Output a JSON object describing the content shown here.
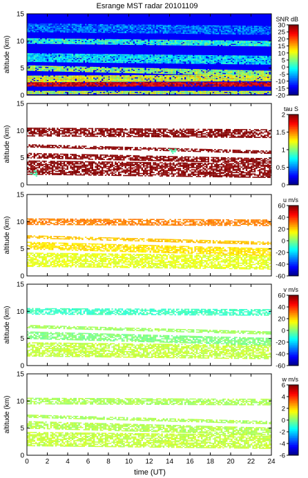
{
  "title": "Esrange MST radar 20101109",
  "xlabel": "time (UT)",
  "chart_data": [
    {
      "type": "heatmap",
      "ylabel": "altitude (km)",
      "colorbar_label": "SNR dB",
      "x_range": [
        0,
        24
      ],
      "x_ticks": [
        0,
        2,
        4,
        6,
        8,
        10,
        12,
        14,
        16,
        18,
        20,
        22,
        24
      ],
      "y_range": [
        0,
        15
      ],
      "y_ticks": [
        0,
        5,
        10,
        15
      ],
      "c_range": [
        -20,
        30
      ],
      "c_ticks": [
        -20,
        -15,
        -10,
        -5,
        0,
        5,
        10,
        15,
        20,
        25,
        30
      ],
      "layers": [
        {
          "alt_start": 0.5,
          "alt_end": 0.5,
          "width": 0.6,
          "value": 8
        },
        {
          "alt_start": 2.0,
          "alt_end": 2.0,
          "width": 0.8,
          "value": 25
        },
        {
          "alt_start": 3.0,
          "alt_end": 3.2,
          "width": 1.2,
          "value": 10
        },
        {
          "alt_start": 5.0,
          "alt_end": 4.0,
          "width": 1.0,
          "value": 6
        },
        {
          "alt_start": 7.0,
          "alt_end": 6.5,
          "width": 1.5,
          "value": -2
        },
        {
          "alt_start": 10.0,
          "alt_end": 9.5,
          "width": 1.0,
          "value": 1
        },
        {
          "alt_start": 12.5,
          "alt_end": 12.0,
          "width": 1.5,
          "value": -8
        }
      ],
      "background": -14
    },
    {
      "type": "heatmap",
      "ylabel": "altitude (km)",
      "colorbar_label": "tau S",
      "x_range": [
        0,
        24
      ],
      "x_ticks": [
        0,
        2,
        4,
        6,
        8,
        10,
        12,
        14,
        16,
        18,
        20,
        22,
        24
      ],
      "y_range": [
        0,
        15
      ],
      "y_ticks": [
        0,
        5,
        10,
        15
      ],
      "c_range": [
        0,
        2
      ],
      "c_ticks": [
        0,
        0.5,
        1,
        1.5,
        2
      ],
      "layers": [
        {
          "alt_start": 3.2,
          "alt_end": 2.6,
          "width": 2.6,
          "value": 2
        },
        {
          "alt_start": 5.4,
          "alt_end": 4.4,
          "width": 1.0,
          "value": 2
        },
        {
          "alt_start": 9.8,
          "alt_end": 9.5,
          "width": 1.5,
          "value": 2
        },
        {
          "alt_start": 7.2,
          "alt_end": 6.0,
          "width": 0.6,
          "value": 2
        }
      ],
      "patches": [
        {
          "t": 0.6,
          "alt": 2.2,
          "value": 0.9
        },
        {
          "t": 14.2,
          "alt": 6.2,
          "value": 0.9
        }
      ]
    },
    {
      "type": "heatmap",
      "ylabel": "altitude (km)",
      "colorbar_label": "u m/s",
      "x_range": [
        0,
        24
      ],
      "x_ticks": [
        0,
        2,
        4,
        6,
        8,
        10,
        12,
        14,
        16,
        18,
        20,
        22,
        24
      ],
      "y_range": [
        0,
        15
      ],
      "y_ticks": [
        0,
        5,
        10,
        15
      ],
      "c_range": [
        -60,
        60
      ],
      "c_ticks": [
        -60,
        -40,
        -20,
        0,
        20,
        40,
        60
      ],
      "layers": [
        {
          "alt_start": 3.0,
          "alt_end": 2.5,
          "width": 2.6,
          "value": 12
        },
        {
          "alt_start": 5.6,
          "alt_end": 4.4,
          "width": 1.4,
          "value": 18
        },
        {
          "alt_start": 10.0,
          "alt_end": 9.8,
          "width": 1.2,
          "value": 30
        },
        {
          "alt_start": 7.2,
          "alt_end": 6.0,
          "width": 0.6,
          "value": 22
        }
      ]
    },
    {
      "type": "heatmap",
      "ylabel": "altitude (km)",
      "colorbar_label": "v m/s",
      "x_range": [
        0,
        24
      ],
      "x_ticks": [
        0,
        2,
        4,
        6,
        8,
        10,
        12,
        14,
        16,
        18,
        20,
        22,
        24
      ],
      "y_range": [
        0,
        15
      ],
      "y_ticks": [
        0,
        5,
        10,
        15
      ],
      "c_range": [
        -60,
        60
      ],
      "c_ticks": [
        -60,
        -40,
        -20,
        0,
        20,
        40,
        60
      ],
      "layers": [
        {
          "alt_start": 3.0,
          "alt_end": 2.5,
          "width": 2.6,
          "value": 8
        },
        {
          "alt_start": 5.6,
          "alt_end": 4.4,
          "width": 1.4,
          "value": 0
        },
        {
          "alt_start": 10.0,
          "alt_end": 9.8,
          "width": 1.2,
          "value": -8
        },
        {
          "alt_start": 7.2,
          "alt_end": 6.0,
          "width": 0.6,
          "value": 4
        }
      ]
    },
    {
      "type": "heatmap",
      "ylabel": "altitude (km)",
      "colorbar_label": "w m/s",
      "x_range": [
        0,
        24
      ],
      "x_ticks": [
        0,
        2,
        4,
        6,
        8,
        10,
        12,
        14,
        16,
        18,
        20,
        22,
        24
      ],
      "y_range": [
        0,
        15
      ],
      "y_ticks": [
        0,
        5,
        10,
        15
      ],
      "c_range": [
        -6,
        6
      ],
      "c_ticks": [
        -6,
        -4,
        -2,
        0,
        2,
        4,
        6
      ],
      "layers": [
        {
          "alt_start": 3.0,
          "alt_end": 2.5,
          "width": 2.6,
          "value": 0.8
        },
        {
          "alt_start": 5.6,
          "alt_end": 4.4,
          "width": 1.4,
          "value": 0.6
        },
        {
          "alt_start": 10.0,
          "alt_end": 9.8,
          "width": 1.2,
          "value": 0.5
        },
        {
          "alt_start": 7.2,
          "alt_end": 6.0,
          "width": 0.6,
          "value": 0.5
        }
      ]
    }
  ]
}
